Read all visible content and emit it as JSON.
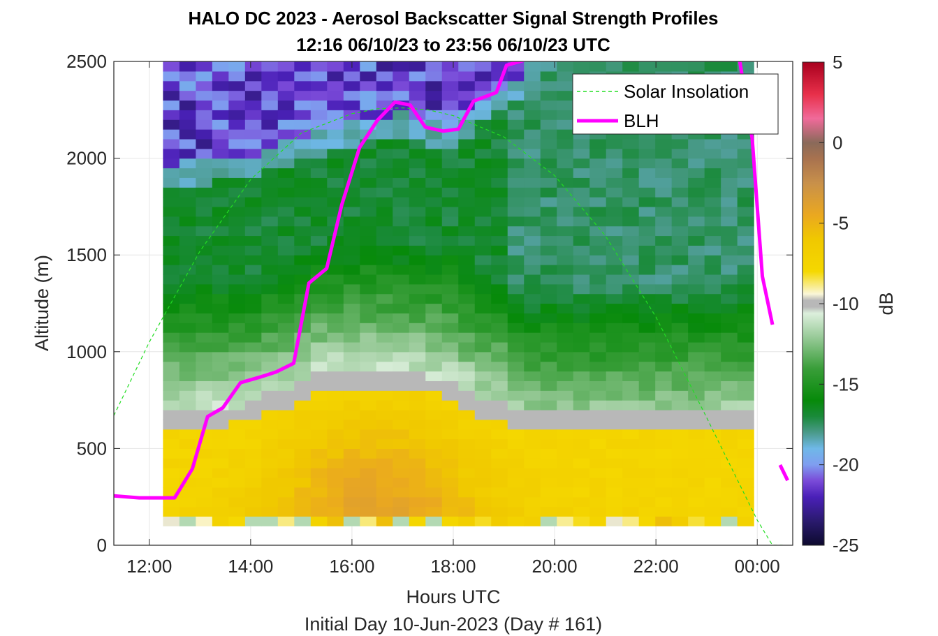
{
  "chart_data": {
    "type": "heatmap",
    "title": "HALO DC 2023 - Aerosol Backscatter Signal Strength Profiles",
    "subtitle": "12:16 06/10/23 to 23:56 06/10/23  UTC",
    "xlabel": "Hours UTC",
    "xlabel2": "Initial Day 10-Jun-2023 (Day # 161)",
    "ylabel": "Altitude (m)",
    "xlim": [
      11.3,
      24.7
    ],
    "ylim": [
      0,
      2500
    ],
    "x_ticks": [
      {
        "value": 12,
        "label": "12:00"
      },
      {
        "value": 14,
        "label": "14:00"
      },
      {
        "value": 16,
        "label": "16:00"
      },
      {
        "value": 18,
        "label": "18:00"
      },
      {
        "value": 20,
        "label": "20:00"
      },
      {
        "value": 22,
        "label": "22:00"
      },
      {
        "value": 24,
        "label": "00:00"
      }
    ],
    "y_ticks": [
      {
        "value": 0,
        "label": "0"
      },
      {
        "value": 500,
        "label": "500"
      },
      {
        "value": 1000,
        "label": "1000"
      },
      {
        "value": 1500,
        "label": "1500"
      },
      {
        "value": 2000,
        "label": "2000"
      },
      {
        "value": 2500,
        "label": "2500"
      }
    ],
    "grid": true,
    "legend_position": "top-right",
    "colorbar": {
      "label": "dB",
      "range": [
        -25,
        5
      ],
      "ticks": [
        {
          "value": 5,
          "label": "5"
        },
        {
          "value": 0,
          "label": "0"
        },
        {
          "value": -5,
          "label": "-5"
        },
        {
          "value": -10,
          "label": "-10"
        },
        {
          "value": -15,
          "label": "-15"
        },
        {
          "value": -20,
          "label": "-20"
        },
        {
          "value": -25,
          "label": "-25"
        }
      ],
      "colormap": [
        {
          "v": -25,
          "c": "#0d0a2e"
        },
        {
          "v": -23.5,
          "c": "#2a1a6e"
        },
        {
          "v": -22,
          "c": "#4a20b8"
        },
        {
          "v": -21,
          "c": "#7a4ad8"
        },
        {
          "v": -20,
          "c": "#7f9ef0"
        },
        {
          "v": -19,
          "c": "#6fb8e8"
        },
        {
          "v": -18,
          "c": "#4a9a8a"
        },
        {
          "v": -17,
          "c": "#1a8a3a"
        },
        {
          "v": -16,
          "c": "#078a0a"
        },
        {
          "v": -14,
          "c": "#3a9e3a"
        },
        {
          "v": -12,
          "c": "#9ccc9c"
        },
        {
          "v": -10.6,
          "c": "#dcefdc"
        },
        {
          "v": -10.2,
          "c": "#b8b8b8"
        },
        {
          "v": -9.8,
          "c": "#b8b8b8"
        },
        {
          "v": -9.4,
          "c": "#faf6d8"
        },
        {
          "v": -8,
          "c": "#f5d800"
        },
        {
          "v": -6,
          "c": "#f0c800"
        },
        {
          "v": -4.5,
          "c": "#eaa820"
        },
        {
          "v": -2.5,
          "c": "#c8904a"
        },
        {
          "v": -1,
          "c": "#a8724f"
        },
        {
          "v": 0,
          "c": "#8a6a5a"
        },
        {
          "v": 1.5,
          "c": "#f06a9a"
        },
        {
          "v": 3,
          "c": "#e8304a"
        },
        {
          "v": 5,
          "c": "#a8001e"
        }
      ]
    },
    "heatmap": {
      "x_start": 12.27,
      "x_end": 23.93,
      "n_cols": 36,
      "y_start": 100,
      "y_end": 2500,
      "n_rows": 48,
      "value_units": "dB"
    },
    "series": [
      {
        "name": "Solar Insolation",
        "style": "dashed",
        "color": "#22dd22",
        "x": [
          11.3,
          12.0,
          13.0,
          14.0,
          15.0,
          16.0,
          16.5,
          17.0,
          17.5,
          18.0,
          19.0,
          20.0,
          21.0,
          22.0,
          23.0,
          24.0,
          24.3,
          24.5
        ],
        "y": [
          670,
          1050,
          1520,
          1890,
          2130,
          2230,
          2255,
          2260,
          2250,
          2220,
          2110,
          1910,
          1600,
          1180,
          660,
          130,
          0,
          0
        ]
      },
      {
        "name": "BLH",
        "style": "solid",
        "color": "#ff00ff",
        "segments": [
          {
            "x": [
              11.3,
              11.8,
              12.5,
              12.85,
              13.15,
              13.45,
              13.8,
              14.2,
              14.5,
              14.85,
              15.15,
              15.5,
              15.8,
              16.15,
              16.5,
              16.85,
              17.15,
              17.45,
              17.8,
              18.1,
              18.4,
              18.6,
              18.85,
              19.05,
              19.45
            ],
            "y": [
              255,
              245,
              245,
              395,
              665,
              710,
              840,
              870,
              895,
              940,
              1355,
              1430,
              1760,
              2055,
              2195,
              2290,
              2275,
              2160,
              2140,
              2150,
              2295,
              2315,
              2340,
              2480,
              2510
            ]
          },
          {
            "x": [
              23.65,
              23.9,
              24.1,
              24.3
            ],
            "y": [
              2510,
              2100,
              1390,
              1140
            ]
          },
          {
            "x": [
              24.45,
              24.6
            ],
            "y": [
              415,
              335
            ]
          }
        ]
      }
    ],
    "legend": [
      "Solar Insolation",
      "BLH"
    ]
  }
}
